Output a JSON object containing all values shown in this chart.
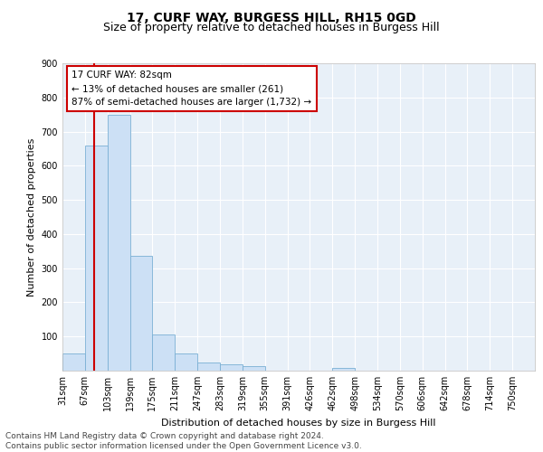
{
  "title": "17, CURF WAY, BURGESS HILL, RH15 0GD",
  "subtitle": "Size of property relative to detached houses in Burgess Hill",
  "xlabel": "Distribution of detached houses by size in Burgess Hill",
  "ylabel": "Number of detached properties",
  "bar_labels": [
    "31sqm",
    "67sqm",
    "103sqm",
    "139sqm",
    "175sqm",
    "211sqm",
    "247sqm",
    "283sqm",
    "319sqm",
    "355sqm",
    "391sqm",
    "426sqm",
    "462sqm",
    "498sqm",
    "534sqm",
    "570sqm",
    "606sqm",
    "642sqm",
    "678sqm",
    "714sqm",
    "750sqm"
  ],
  "bar_heights": [
    50,
    660,
    750,
    335,
    107,
    50,
    25,
    18,
    12,
    0,
    0,
    0,
    8,
    0,
    0,
    0,
    0,
    0,
    0,
    0,
    0
  ],
  "bar_color": "#cce0f5",
  "bar_edge_color": "#7ab0d4",
  "highlight_line_color": "#cc0000",
  "annotation_text": "17 CURF WAY: 82sqm\n← 13% of detached houses are smaller (261)\n87% of semi-detached houses are larger (1,732) →",
  "annotation_box_color": "#ffffff",
  "annotation_box_edge_color": "#cc0000",
  "ylim": [
    0,
    900
  ],
  "yticks": [
    0,
    100,
    200,
    300,
    400,
    500,
    600,
    700,
    800,
    900
  ],
  "background_color": "#e8f0f8",
  "footer_line1": "Contains HM Land Registry data © Crown copyright and database right 2024.",
  "footer_line2": "Contains public sector information licensed under the Open Government Licence v3.0.",
  "title_fontsize": 10,
  "subtitle_fontsize": 9,
  "xlabel_fontsize": 8,
  "ylabel_fontsize": 8,
  "tick_fontsize": 7,
  "annotation_fontsize": 7.5,
  "footer_fontsize": 6.5
}
